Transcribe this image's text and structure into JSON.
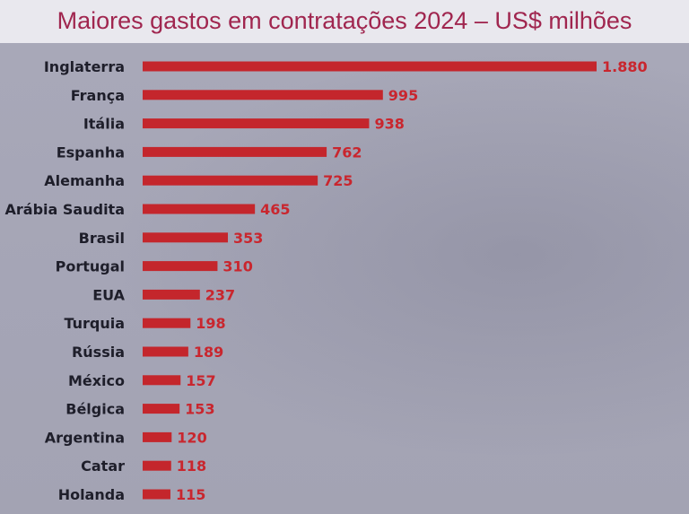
{
  "chart_data": {
    "type": "bar",
    "orientation": "horizontal",
    "title": "Maiores gastos em contratações 2024 – US$ milhões",
    "categories": [
      "Inglaterra",
      "França",
      "Itália",
      "Espanha",
      "Alemanha",
      "Arábia Saudita",
      "Brasil",
      "Portugal",
      "EUA",
      "Turquia",
      "Rússia",
      "México",
      "Bélgica",
      "Argentina",
      "Catar",
      "Holanda"
    ],
    "values": [
      1880,
      995,
      938,
      762,
      725,
      465,
      353,
      310,
      237,
      198,
      189,
      157,
      153,
      120,
      118,
      115
    ],
    "value_labels": [
      "1.880",
      "995",
      "938",
      "762",
      "725",
      "465",
      "353",
      "310",
      "237",
      "198",
      "189",
      "157",
      "153",
      "120",
      "118",
      "115"
    ],
    "xlabel": "",
    "ylabel": "",
    "xlim": [
      0,
      1880
    ],
    "grid": false,
    "legend": "none",
    "bar_color": "#c4262c",
    "title_color": "#a0264f"
  }
}
